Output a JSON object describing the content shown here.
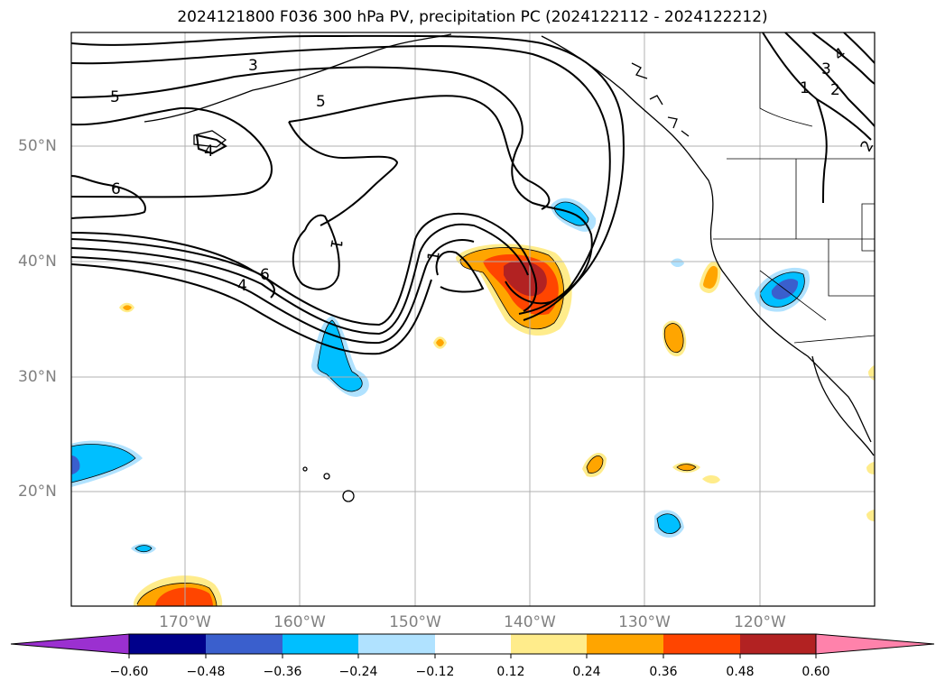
{
  "title": "2024121800 F036 300 hPa PV, precipitation PC (2024122112 - 2024122212)",
  "lat_labels": [
    "50°N",
    "40°N",
    "30°N",
    "20°N"
  ],
  "lon_labels": [
    "170°W",
    "160°W",
    "150°W",
    "140°W",
    "130°W",
    "120°W"
  ],
  "contour_labels": [
    "3",
    "5",
    "5",
    "4",
    "6",
    "6",
    "4",
    "1",
    "1",
    "4",
    "3",
    "1",
    "2",
    "2"
  ],
  "colorbar": {
    "ticks": [
      "−0.60",
      "−0.48",
      "−0.36",
      "−0.24",
      "−0.12",
      "0.12",
      "0.24",
      "0.36",
      "0.48",
      "0.60"
    ],
    "colors": [
      "#9b30d0",
      "#00008b",
      "#3a5fcd",
      "#00bfff",
      "#b0e2ff",
      "#ffffff",
      "#ffec8b",
      "#ffa500",
      "#ff4500",
      "#b22222",
      "#ff82ab"
    ]
  },
  "colors": {
    "land_outline": "#000000",
    "grid": "#b0b0b0",
    "contour": "#000000"
  }
}
